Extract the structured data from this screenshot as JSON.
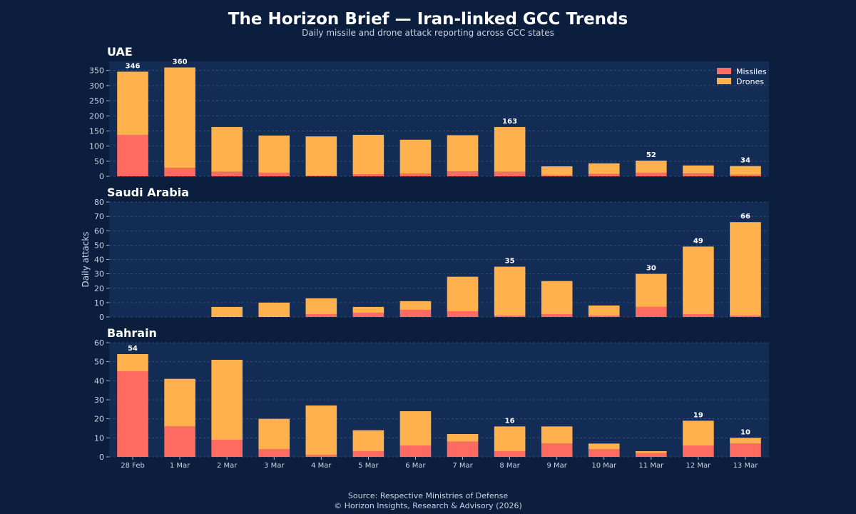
{
  "title": "The Horizon Brief — Iran-linked GCC Trends",
  "subtitle": "Daily missile and drone attack reporting across GCC states",
  "footer": {
    "source": "Source: Respective Ministries of Defense",
    "copyright": "© Horizon Insights, Research & Advisory (2026)"
  },
  "colors": {
    "background": "#0b1e3d",
    "panel": "#132c55",
    "missiles": "#ff6b61",
    "drones": "#ffb14e",
    "grid": "#3a5582",
    "text": "#ffffff",
    "muted": "#c9d3e3"
  },
  "chart_data": {
    "type": "bar",
    "stacked": true,
    "categories": [
      "28 Feb",
      "1 Mar",
      "2 Mar",
      "3 Mar",
      "4 Mar",
      "5 Mar",
      "6 Mar",
      "7 Mar",
      "8 Mar",
      "9 Mar",
      "10 Mar",
      "11 Mar",
      "12 Mar",
      "13 Mar"
    ],
    "ylabel": "Daily attacks",
    "legend": {
      "position": "top-right",
      "entries": [
        "Missiles",
        "Drones"
      ]
    },
    "grid": true,
    "panels": [
      {
        "name": "UAE",
        "ylim": [
          0,
          380
        ],
        "yticks": [
          0,
          50,
          100,
          150,
          200,
          250,
          300,
          350
        ],
        "series": [
          {
            "name": "Missiles",
            "values": [
              137,
              28,
              15,
              12,
              2,
              7,
              9,
              16,
              15,
              3,
              8,
              12,
              10,
              5
            ]
          },
          {
            "name": "Drones",
            "values": [
              209,
              332,
              148,
              123,
              130,
              130,
              112,
              120,
              148,
              30,
              35,
              40,
              26,
              29
            ]
          }
        ],
        "total_labels": [
          {
            "category": "28 Feb",
            "value": "346"
          },
          {
            "category": "1 Mar",
            "value": "360"
          },
          {
            "category": "8 Mar",
            "value": "163"
          },
          {
            "category": "11 Mar",
            "value": "52"
          },
          {
            "category": "13 Mar",
            "value": "34"
          }
        ]
      },
      {
        "name": "Saudi Arabia",
        "ylim": [
          0,
          80
        ],
        "yticks": [
          0,
          10,
          20,
          30,
          40,
          50,
          60,
          70,
          80
        ],
        "series": [
          {
            "name": "Missiles",
            "values": [
              0,
              0,
              0,
              0,
              2,
              3,
              5,
              4,
              1,
              2,
              1,
              7,
              2,
              1
            ]
          },
          {
            "name": "Drones",
            "values": [
              0,
              0,
              7,
              10,
              11,
              4,
              6,
              24,
              34,
              23,
              7,
              23,
              47,
              65
            ]
          }
        ],
        "total_labels": [
          {
            "category": "8 Mar",
            "value": "35"
          },
          {
            "category": "11 Mar",
            "value": "30"
          },
          {
            "category": "12 Mar",
            "value": "49"
          },
          {
            "category": "13 Mar",
            "value": "66"
          }
        ]
      },
      {
        "name": "Bahrain",
        "ylim": [
          0,
          60
        ],
        "yticks": [
          0,
          10,
          20,
          30,
          40,
          50,
          60
        ],
        "series": [
          {
            "name": "Missiles",
            "values": [
              45,
              16,
              9,
              4,
              1,
              3,
              6,
              8,
              3,
              7,
              4,
              2,
              6,
              7
            ]
          },
          {
            "name": "Drones",
            "values": [
              9,
              25,
              42,
              16,
              26,
              11,
              18,
              4,
              13,
              9,
              3,
              1,
              13,
              3
            ]
          }
        ],
        "total_labels": [
          {
            "category": "28 Feb",
            "value": "54"
          },
          {
            "category": "8 Mar",
            "value": "16"
          },
          {
            "category": "12 Mar",
            "value": "19"
          },
          {
            "category": "13 Mar",
            "value": "10"
          }
        ]
      }
    ]
  }
}
